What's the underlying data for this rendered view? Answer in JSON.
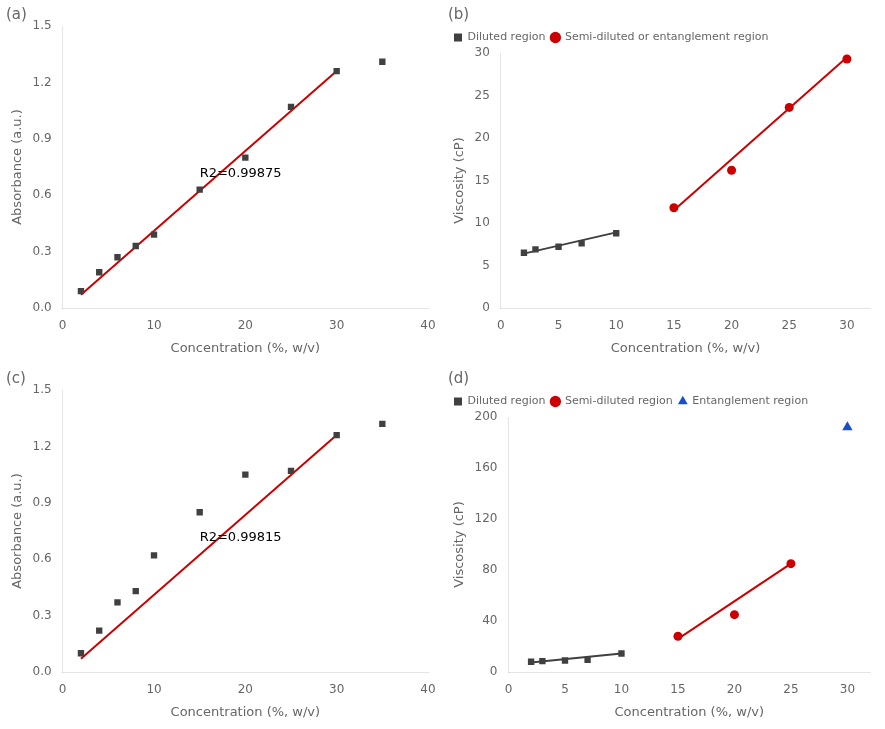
{
  "chart_data": [
    {
      "type": "scatter",
      "title": "(a)",
      "xlabel": "Concentration (%, w/v)",
      "ylabel": "Absorbance (a.u.)",
      "xlim": [
        0,
        40
      ],
      "ylim": [
        0,
        1.5
      ],
      "xticks": [
        0,
        10,
        20,
        30,
        40
      ],
      "yticks": [
        {
          "value": 0,
          "label": "0.0"
        },
        0.3,
        0.6,
        0.9,
        1.2,
        1.5
      ],
      "grid": false,
      "series": [
        {
          "type": "scatter",
          "marker": "square",
          "color": "#404040",
          "x": [
            2,
            4,
            6,
            8,
            10,
            15,
            20,
            25,
            30,
            35
          ],
          "values": [
            0.09,
            0.19,
            0.27,
            0.33,
            0.39,
            0.63,
            0.8,
            1.07,
            1.26,
            1.31
          ]
        },
        {
          "type": "line",
          "color": "#cc0000",
          "x": [
            2,
            30
          ],
          "values": [
            0.07,
            1.26
          ]
        }
      ],
      "annotations": [
        {
          "text": "R2=0.99875",
          "x": 15,
          "y": 0.68
        }
      ]
    },
    {
      "type": "scatter",
      "title": "(b)",
      "xlabel": "Concentration (%, w/v)",
      "ylabel": "Viscosity (cP)",
      "xlim": [
        0,
        32
      ],
      "ylim": [
        0,
        30
      ],
      "xticks": [
        0,
        5,
        10,
        15,
        20,
        25,
        30
      ],
      "yticks": [
        0,
        5,
        10,
        15,
        20,
        25,
        30
      ],
      "grid": false,
      "legend": "upper left",
      "series": [
        {
          "name": "Diluted region",
          "type": "scatter",
          "marker": "square",
          "color": "#404040",
          "x": [
            2,
            3,
            5,
            7,
            10
          ],
          "values": [
            6.5,
            6.9,
            7.2,
            7.6,
            8.8
          ]
        },
        {
          "name": "Semi-diluted or entanglement region",
          "type": "scatter",
          "marker": "circle",
          "color": "#cc0000",
          "x": [
            15,
            20,
            25,
            30
          ],
          "values": [
            11.8,
            16.2,
            23.6,
            29.3
          ]
        },
        {
          "type": "line",
          "color": "#404040",
          "x": [
            2,
            10
          ],
          "values": [
            6.4,
            8.9
          ]
        },
        {
          "type": "line",
          "color": "#cc0000",
          "x": [
            15,
            30
          ],
          "values": [
            11.5,
            29.5
          ]
        }
      ]
    },
    {
      "type": "scatter",
      "title": "(c)",
      "xlabel": "Concentration (%, w/v)",
      "ylabel": "Absorbance (a.u.)",
      "xlim": [
        0,
        40
      ],
      "ylim": [
        0,
        1.5
      ],
      "xticks": [
        0,
        10,
        20,
        30,
        40
      ],
      "yticks": [
        {
          "value": 0,
          "label": "0.0"
        },
        0.3,
        0.6,
        0.9,
        1.2,
        1.5
      ],
      "grid": false,
      "series": [
        {
          "type": "scatter",
          "marker": "square",
          "color": "#404040",
          "x": [
            2,
            4,
            6,
            8,
            10,
            15,
            20,
            25,
            30,
            35
          ],
          "values": [
            0.1,
            0.22,
            0.37,
            0.43,
            0.62,
            0.85,
            1.05,
            1.07,
            1.26,
            1.32
          ]
        },
        {
          "type": "line",
          "color": "#cc0000",
          "x": [
            2,
            30
          ],
          "values": [
            0.07,
            1.26
          ]
        }
      ],
      "annotations": [
        {
          "text": "R2=0.99815",
          "x": 15,
          "y": 0.68
        }
      ]
    },
    {
      "type": "scatter",
      "title": "(d)",
      "xlabel": "Concentration (%, w/v)",
      "ylabel": "Viscosity (cP)",
      "xlim": [
        0,
        32
      ],
      "ylim": [
        0,
        200
      ],
      "xticks": [
        0,
        5,
        10,
        15,
        20,
        25,
        30
      ],
      "yticks": [
        0,
        40,
        80,
        120,
        160,
        200
      ],
      "grid": false,
      "legend": "upper left",
      "series": [
        {
          "name": "Diluted region",
          "type": "scatter",
          "marker": "square",
          "color": "#404040",
          "x": [
            2,
            3,
            5,
            7,
            10
          ],
          "values": [
            8.0,
            8.5,
            9.0,
            9.5,
            14.5
          ]
        },
        {
          "name": "Semi-diluted region",
          "type": "scatter",
          "marker": "circle",
          "color": "#cc0000",
          "x": [
            15,
            20,
            25
          ],
          "values": [
            28.0,
            45.0,
            85.0
          ]
        },
        {
          "name": "Entanglement region",
          "type": "scatter",
          "marker": "triangle",
          "color": "#1a4fcc",
          "x": [
            30
          ],
          "values": [
            192.0
          ]
        },
        {
          "type": "line",
          "color": "#404040",
          "x": [
            2,
            10
          ],
          "values": [
            7.5,
            14.5
          ]
        },
        {
          "type": "line",
          "color": "#cc0000",
          "x": [
            15,
            25
          ],
          "values": [
            26.0,
            85.0
          ]
        }
      ]
    }
  ]
}
